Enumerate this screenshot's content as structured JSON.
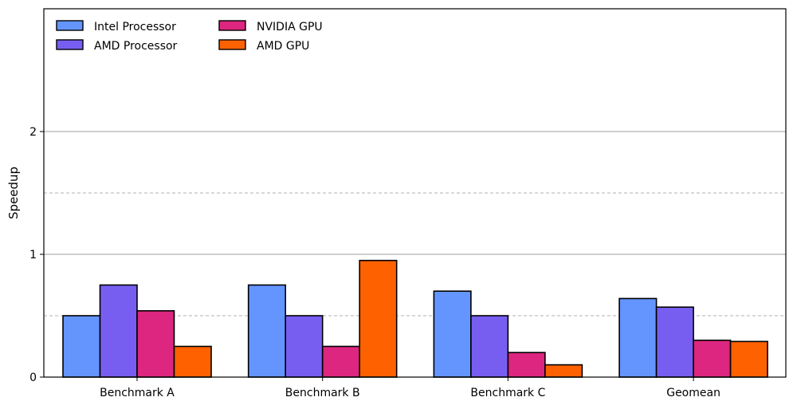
{
  "chart_data": {
    "type": "bar",
    "title": "",
    "xlabel": "",
    "ylabel": "Speedup",
    "categories": [
      "Benchmark A",
      "Benchmark B",
      "Benchmark C",
      "Geomean"
    ],
    "ylim": [
      0,
      3
    ],
    "yticks": [
      0,
      1,
      2
    ],
    "minor_grid": [
      0.5,
      1.5
    ],
    "grid": true,
    "legend_position": "top-left",
    "series": [
      {
        "name": "Intel Processor",
        "color": "#6495FF",
        "values": [
          0.5,
          0.75,
          0.7,
          0.64
        ]
      },
      {
        "name": "AMD Processor",
        "color": "#785EF0",
        "values": [
          0.75,
          0.5,
          0.5,
          0.57
        ]
      },
      {
        "name": "NVIDIA GPU",
        "color": "#DC267F",
        "values": [
          0.54,
          0.25,
          0.2,
          0.3
        ]
      },
      {
        "name": "AMD GPU",
        "color": "#FE6100",
        "values": [
          0.25,
          0.95,
          0.1,
          0.29
        ]
      }
    ]
  }
}
